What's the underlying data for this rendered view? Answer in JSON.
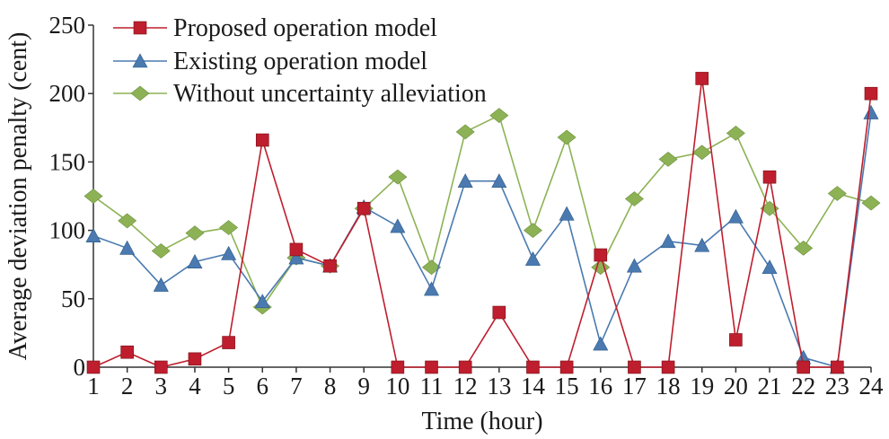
{
  "chart_data": {
    "type": "line",
    "xlabel": "Time (hour)",
    "ylabel": "Average deviation penalty (cent)",
    "ylim": [
      0,
      250
    ],
    "yticks": [
      0,
      50,
      100,
      150,
      200,
      250
    ],
    "x": [
      1,
      2,
      3,
      4,
      5,
      6,
      7,
      8,
      9,
      10,
      11,
      12,
      13,
      14,
      15,
      16,
      17,
      18,
      19,
      20,
      21,
      22,
      23,
      24
    ],
    "legend_position": "top-left",
    "grid": false,
    "series": [
      {
        "name": "Proposed operation model",
        "color": "#be1e2d",
        "marker": "square",
        "values": [
          0,
          11,
          0,
          6,
          18,
          166,
          86,
          74,
          116,
          0,
          0,
          0,
          40,
          0,
          0,
          82,
          0,
          0,
          211,
          20,
          139,
          0,
          0,
          200
        ]
      },
      {
        "name": "Existing operation model",
        "color": "#4a7ab0",
        "marker": "triangle",
        "values": [
          96,
          87,
          60,
          77,
          83,
          48,
          80,
          74,
          117,
          103,
          57,
          136,
          136,
          79,
          112,
          17,
          74,
          92,
          89,
          110,
          73,
          7,
          0,
          186
        ]
      },
      {
        "name": "Without uncertainty alleviation",
        "color": "#8db255",
        "marker": "diamond",
        "values": [
          125,
          107,
          85,
          98,
          102,
          44,
          80,
          74,
          116,
          139,
          73,
          172,
          184,
          100,
          168,
          73,
          123,
          152,
          157,
          171,
          116,
          87,
          127,
          120
        ]
      }
    ]
  }
}
